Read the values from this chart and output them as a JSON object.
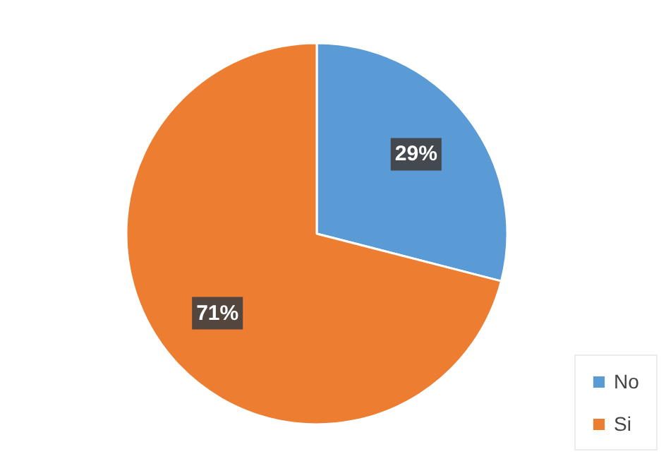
{
  "chart_data": {
    "type": "pie",
    "categories": [
      "No",
      "Si"
    ],
    "values": [
      29,
      71
    ],
    "colors": [
      "#5b9bd5",
      "#ed7d31"
    ],
    "value_labels": [
      "29%",
      "71%"
    ],
    "legend": "bottom right"
  }
}
